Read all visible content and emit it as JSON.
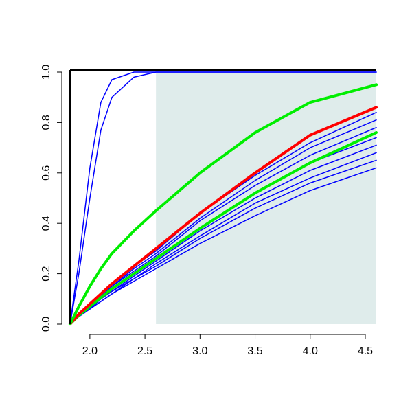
{
  "chart_data": {
    "type": "line",
    "x": [
      1.82,
      1.9,
      2.0,
      2.1,
      2.2,
      2.4,
      2.6,
      3.0,
      3.5,
      4.0,
      4.6
    ],
    "xlim": [
      1.82,
      4.6
    ],
    "ylim": [
      0,
      1
    ],
    "xticks": [
      {
        "value": 2,
        "label": "2.0"
      },
      2.5,
      {
        "value": 3,
        "label": "3.0"
      },
      3.5,
      {
        "value": 4,
        "label": "4.0"
      },
      4.5
    ],
    "yticks": [
      {
        "value": 0,
        "label": "0.0"
      },
      0.2,
      0.4,
      0.6,
      0.8,
      {
        "value": 1,
        "label": "1.0"
      }
    ],
    "shaded_region": {
      "x": [
        2.6,
        4.6
      ],
      "y": [
        0,
        1
      ],
      "color": "#dfeceb"
    },
    "series": [
      {
        "color": "#0000ff",
        "width": 1.5,
        "values": [
          0,
          0.25,
          0.62,
          0.88,
          0.97,
          1.0,
          1.0,
          1.0,
          1.0,
          1.0,
          1.0
        ]
      },
      {
        "color": "#0000ff",
        "width": 1.5,
        "values": [
          0,
          0.2,
          0.5,
          0.77,
          0.9,
          0.98,
          1.0,
          1.0,
          1.0,
          1.0,
          1.0
        ]
      },
      {
        "color": "#0000ff",
        "width": 1.5,
        "values": [
          0,
          0.04,
          0.08,
          0.12,
          0.16,
          0.23,
          0.29,
          0.44,
          0.59,
          0.72,
          0.84
        ]
      },
      {
        "color": "#0000ff",
        "width": 1.5,
        "values": [
          0,
          0.035,
          0.07,
          0.11,
          0.15,
          0.22,
          0.28,
          0.42,
          0.57,
          0.7,
          0.81
        ]
      },
      {
        "color": "#0000ff",
        "width": 1.5,
        "values": [
          0,
          0.035,
          0.07,
          0.11,
          0.15,
          0.21,
          0.27,
          0.41,
          0.55,
          0.67,
          0.78
        ]
      },
      {
        "color": "#0000ff",
        "width": 1.5,
        "values": [
          0,
          0.035,
          0.07,
          0.1,
          0.14,
          0.2,
          0.26,
          0.38,
          0.52,
          0.64,
          0.74
        ]
      },
      {
        "color": "#0000ff",
        "width": 1.5,
        "values": [
          0,
          0.03,
          0.06,
          0.1,
          0.13,
          0.19,
          0.25,
          0.37,
          0.5,
          0.61,
          0.71
        ]
      },
      {
        "color": "#0000ff",
        "width": 1.5,
        "values": [
          0,
          0.03,
          0.06,
          0.1,
          0.13,
          0.18,
          0.24,
          0.35,
          0.48,
          0.58,
          0.68
        ]
      },
      {
        "color": "#0000ff",
        "width": 1.5,
        "values": [
          0,
          0.03,
          0.06,
          0.09,
          0.12,
          0.18,
          0.23,
          0.34,
          0.46,
          0.56,
          0.65
        ]
      },
      {
        "color": "#0000ff",
        "width": 1.5,
        "values": [
          0,
          0.03,
          0.06,
          0.09,
          0.12,
          0.17,
          0.22,
          0.32,
          0.43,
          0.53,
          0.62
        ]
      },
      {
        "color": "#00ee00",
        "width": 4,
        "values": [
          0,
          0.035,
          0.07,
          0.105,
          0.14,
          0.2,
          0.26,
          0.38,
          0.52,
          0.64,
          0.76
        ]
      },
      {
        "color": "#ff0000",
        "width": 4,
        "values": [
          0,
          0.04,
          0.08,
          0.12,
          0.16,
          0.23,
          0.3,
          0.44,
          0.6,
          0.75,
          0.86
        ]
      },
      {
        "color": "#00ee00",
        "width": 4,
        "values": [
          0,
          0.07,
          0.15,
          0.22,
          0.28,
          0.37,
          0.45,
          0.6,
          0.76,
          0.88,
          0.95
        ]
      }
    ]
  }
}
